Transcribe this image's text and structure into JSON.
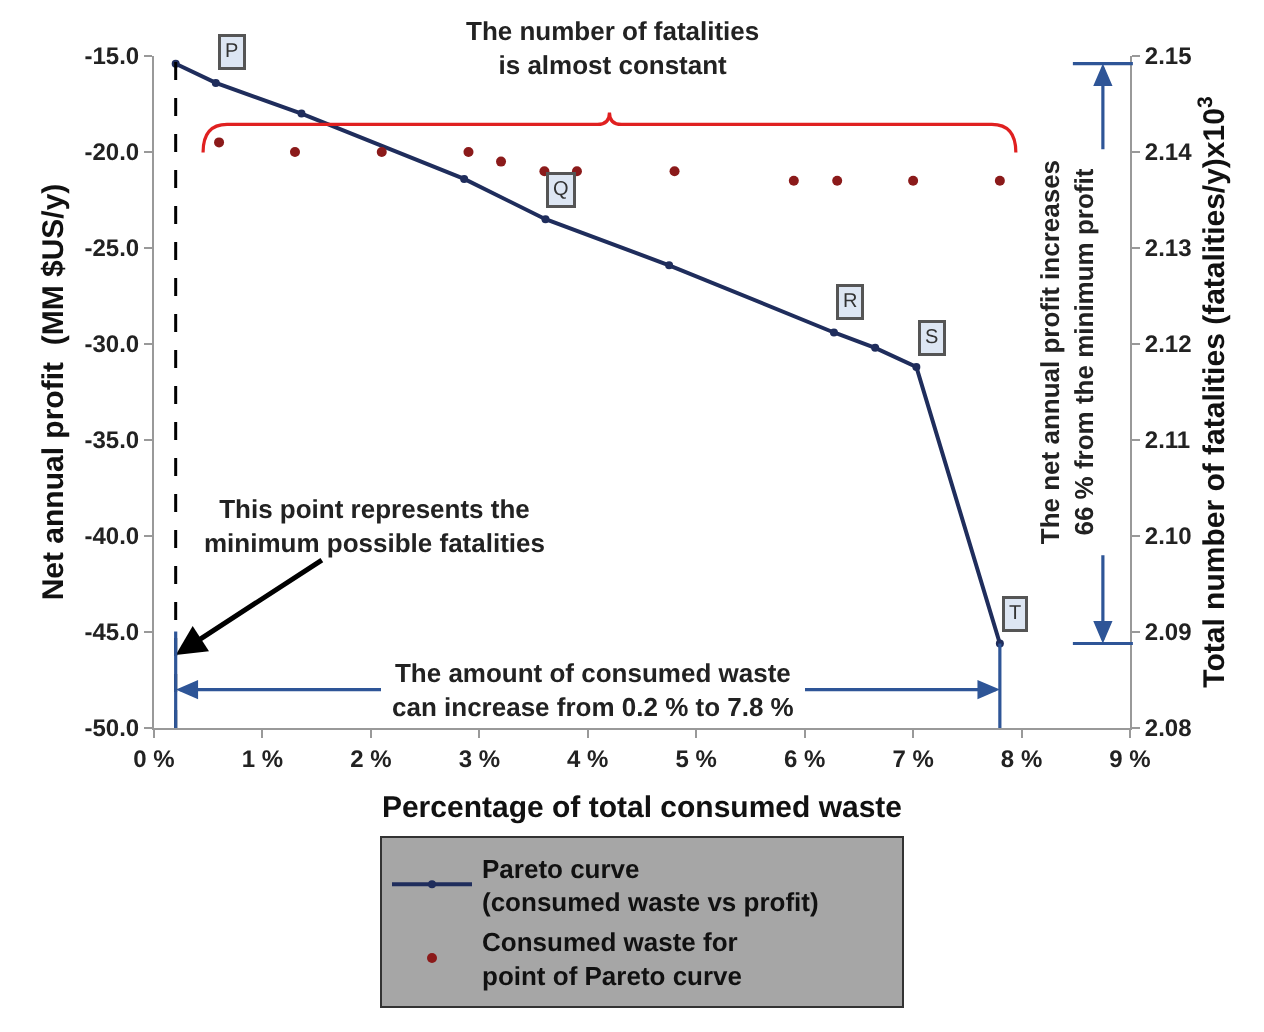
{
  "chart_data": {
    "type": "line",
    "xlabel": "Percentage of total consumed waste",
    "ylabel": "Net annual profit  (MM $US/y)",
    "y2label": "Total number of fatalities (fatalities/y)x10$^{3}$",
    "xlim": [
      0,
      9
    ],
    "xticks": [
      {
        "value": 0,
        "label": "0 %"
      },
      {
        "value": 1,
        "label": "1 %"
      },
      {
        "value": 2,
        "label": "2 %"
      },
      {
        "value": 3,
        "label": "3 %"
      },
      {
        "value": 4,
        "label": "4 %"
      },
      {
        "value": 5,
        "label": "5 %"
      },
      {
        "value": 6,
        "label": "6 %"
      },
      {
        "value": 7,
        "label": "7 %"
      },
      {
        "value": 8,
        "label": "8 %"
      },
      {
        "value": 9,
        "label": "9 %"
      }
    ],
    "ylim": [
      -50,
      -15
    ],
    "yticks": [
      {
        "value": -50,
        "label": "-50.0"
      },
      {
        "value": -45,
        "label": "-45.0"
      },
      {
        "value": -40,
        "label": "-40.0"
      },
      {
        "value": -35,
        "label": "-35.0"
      },
      {
        "value": -30,
        "label": "-30.0"
      },
      {
        "value": -25,
        "label": "-25.0"
      },
      {
        "value": -20,
        "label": "-20.0"
      },
      {
        "value": -15,
        "label": "-15.0"
      }
    ],
    "y2lim": [
      2.08,
      2.15
    ],
    "y2ticks": [
      {
        "value": 2.08,
        "label": "2.08"
      },
      {
        "value": 2.09,
        "label": "2.09"
      },
      {
        "value": 2.1,
        "label": "2.10"
      },
      {
        "value": 2.11,
        "label": "2.11"
      },
      {
        "value": 2.12,
        "label": "2.12"
      },
      {
        "value": 2.13,
        "label": "2.13"
      },
      {
        "value": 2.14,
        "label": "2.14"
      },
      {
        "value": 2.15,
        "label": "2.15"
      }
    ],
    "series": [
      {
        "name": "Pareto curve (consumed waste vs profit)",
        "color": "#1f2d5c",
        "marker": "circle",
        "x": [
          0.2,
          0.57,
          1.36,
          2.86,
          3.61,
          4.75,
          6.27,
          6.65,
          7.03,
          7.8
        ],
        "values": [
          -15.4,
          -16.4,
          -18.0,
          -21.4,
          -23.5,
          -25.9,
          -29.4,
          -30.2,
          -31.2,
          -45.6
        ]
      },
      {
        "name": "Consumed waste for point of Pareto curve",
        "type": "scatter",
        "axis": "y2",
        "color": "#8b1a1a",
        "marker": "circle",
        "x": [
          0.6,
          1.3,
          2.1,
          2.9,
          3.2,
          3.6,
          3.9,
          4.8,
          5.9,
          6.3,
          7.0,
          7.8
        ],
        "values": [
          2.141,
          2.14,
          2.14,
          2.14,
          2.139,
          2.138,
          2.138,
          2.138,
          2.137,
          2.137,
          2.137,
          2.137
        ]
      }
    ],
    "ref_lines": [
      {
        "axis": "x",
        "value": 0.2,
        "color": "#000000",
        "line_style": "dashed"
      }
    ],
    "annotations": [
      "The number of fatalities is almost constant",
      {
        "text": "This point represents the minimum possible fatalities",
        "x": 0.2,
        "y": -46.2
      },
      {
        "text": "The amount of consumed waste can increase from 0.2 % to 7.8 %",
        "x": 0.2,
        "y": -48
      },
      "The net annual profit increases 66 % from the minimum profit",
      {
        "text": "P",
        "x": 0.57,
        "y": -16.4
      },
      {
        "text": "Q",
        "x": 3.61,
        "y": -23.5
      },
      {
        "text": "R",
        "x": 6.27,
        "y": -29.4
      },
      {
        "text": "S",
        "x": 7.03,
        "y": -31.2
      },
      {
        "text": "T",
        "x": 7.8,
        "y": -45.6
      }
    ],
    "grid": false,
    "legend": "bottom"
  }
}
